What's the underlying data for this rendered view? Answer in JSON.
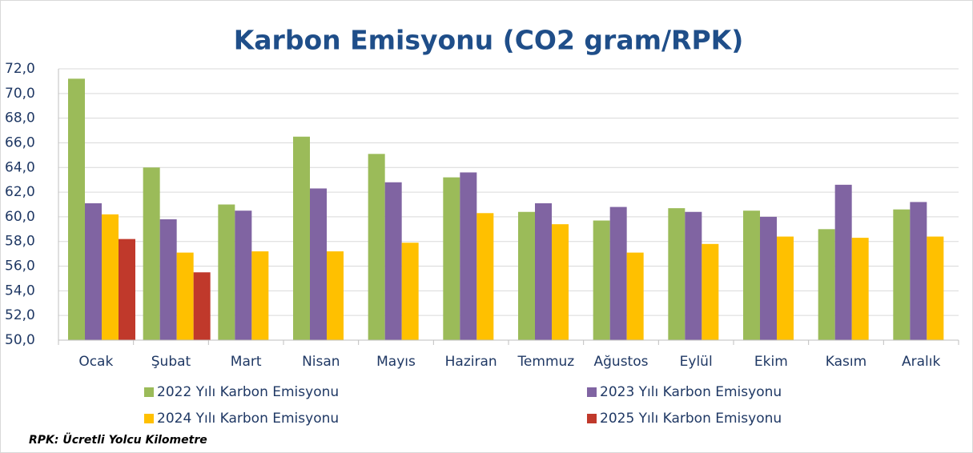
{
  "chart_data": {
    "type": "bar",
    "title": "Karbon Emisyonu (CO2 gram/RPK)",
    "annotation": "RPK: Ücretli Yolcu Kilometre",
    "categories": [
      "Ocak",
      "Şubat",
      "Mart",
      "Nisan",
      "Mayıs",
      "Haziran",
      "Temmuz",
      "Ağustos",
      "Eylül",
      "Ekim",
      "Kasım",
      "Aralık"
    ],
    "series": [
      {
        "name": "2022 Yılı Karbon Emisyonu",
        "color": "#9bbb59",
        "values": [
          71.2,
          64.0,
          61.0,
          66.5,
          65.1,
          63.2,
          60.4,
          59.7,
          60.7,
          60.5,
          59.0,
          60.6
        ]
      },
      {
        "name": "2023 Yılı Karbon Emisyonu",
        "color": "#8064a2",
        "values": [
          61.1,
          59.8,
          60.5,
          62.3,
          62.8,
          63.6,
          61.1,
          60.8,
          60.4,
          60.0,
          62.6,
          61.2
        ]
      },
      {
        "name": "2024 Yılı Karbon Emisyonu",
        "color": "#ffc000",
        "values": [
          60.2,
          57.1,
          57.2,
          57.2,
          57.9,
          60.3,
          59.4,
          57.1,
          57.8,
          58.4,
          58.3,
          58.4
        ]
      },
      {
        "name": "2025 Yılı Karbon Emisyonu",
        "color": "#c0392b",
        "values": [
          58.2,
          55.5,
          null,
          null,
          null,
          null,
          null,
          null,
          null,
          null,
          null,
          null
        ]
      }
    ],
    "ylim": [
      50,
      72
    ],
    "yticks": [
      {
        "value": 50,
        "label": "50,0"
      },
      {
        "value": 52,
        "label": "52,0"
      },
      {
        "value": 54,
        "label": "54,0"
      },
      {
        "value": 56,
        "label": "56,0"
      },
      {
        "value": 58,
        "label": "58,0"
      },
      {
        "value": 60,
        "label": "60,0"
      },
      {
        "value": 62,
        "label": "62,0"
      },
      {
        "value": 64,
        "label": "64,0"
      },
      {
        "value": 66,
        "label": "66,0"
      },
      {
        "value": 68,
        "label": "68,0"
      },
      {
        "value": 70,
        "label": "70,0"
      },
      {
        "value": 72,
        "label": "72,0"
      }
    ],
    "grid": true
  }
}
